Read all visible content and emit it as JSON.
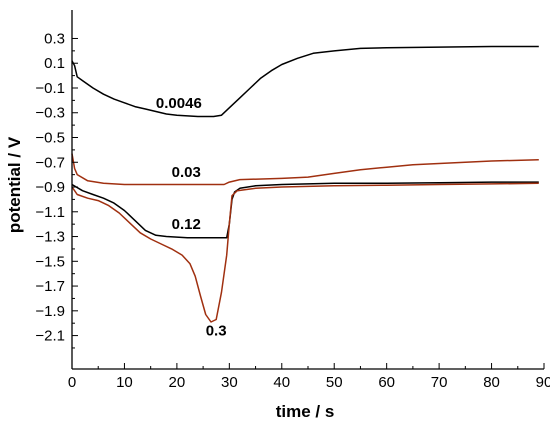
{
  "chart_data": {
    "type": "line",
    "title": "",
    "xlabel": "time / s",
    "ylabel": "potential / V",
    "xlim": [
      0,
      90
    ],
    "ylim": [
      -2.37,
      0.53
    ],
    "xticks": [
      0,
      10,
      20,
      30,
      40,
      50,
      60,
      70,
      80,
      90
    ],
    "yticks": [
      0.3,
      0.1,
      -0.1,
      -0.3,
      -0.5,
      -0.7,
      -0.9,
      -1.1,
      -1.3,
      -1.5,
      -1.7,
      -1.9,
      -2.1
    ],
    "ytick_labels": [
      "0.3",
      "0.1",
      "−0.1",
      "−0.3",
      "−0.5",
      "−0.7",
      "−0.9",
      "−1.1",
      "−1.3",
      "−1.5",
      "−1.7",
      "−1.9",
      "−2.1"
    ],
    "grid": false,
    "legend": "none",
    "series": [
      {
        "name": "0.0046",
        "color": "#000000",
        "label_at": [
          16,
          -0.26
        ],
        "points": [
          [
            0,
            0.12
          ],
          [
            0.5,
            0.08
          ],
          [
            1,
            -0.01
          ],
          [
            2,
            -0.04
          ],
          [
            4,
            -0.1
          ],
          [
            6,
            -0.15
          ],
          [
            8,
            -0.19
          ],
          [
            10,
            -0.22
          ],
          [
            12,
            -0.25
          ],
          [
            14,
            -0.27
          ],
          [
            16,
            -0.29
          ],
          [
            18,
            -0.31
          ],
          [
            20,
            -0.32
          ],
          [
            24,
            -0.33
          ],
          [
            27,
            -0.33
          ],
          [
            28.5,
            -0.32
          ],
          [
            30,
            -0.26
          ],
          [
            32,
            -0.18
          ],
          [
            34,
            -0.1
          ],
          [
            36,
            -0.02
          ],
          [
            38,
            0.04
          ],
          [
            40,
            0.09
          ],
          [
            43,
            0.14
          ],
          [
            46,
            0.18
          ],
          [
            50,
            0.2
          ],
          [
            55,
            0.22
          ],
          [
            60,
            0.225
          ],
          [
            70,
            0.23
          ],
          [
            80,
            0.235
          ],
          [
            89,
            0.235
          ]
        ]
      },
      {
        "name": "0.03",
        "color": "#a03010",
        "label_at": [
          19,
          -0.82
        ],
        "points": [
          [
            0,
            -0.63
          ],
          [
            0.5,
            -0.75
          ],
          [
            1,
            -0.8
          ],
          [
            3,
            -0.85
          ],
          [
            6,
            -0.87
          ],
          [
            10,
            -0.88
          ],
          [
            15,
            -0.88
          ],
          [
            20,
            -0.88
          ],
          [
            25,
            -0.88
          ],
          [
            29,
            -0.88
          ],
          [
            30,
            -0.86
          ],
          [
            32,
            -0.84
          ],
          [
            40,
            -0.83
          ],
          [
            45,
            -0.82
          ],
          [
            50,
            -0.79
          ],
          [
            55,
            -0.76
          ],
          [
            60,
            -0.74
          ],
          [
            65,
            -0.72
          ],
          [
            70,
            -0.71
          ],
          [
            75,
            -0.7
          ],
          [
            80,
            -0.69
          ],
          [
            89,
            -0.68
          ]
        ]
      },
      {
        "name": "0.12",
        "color": "#000000",
        "label_at": [
          19,
          -1.24
        ],
        "points": [
          [
            0,
            -0.88
          ],
          [
            2,
            -0.93
          ],
          [
            4,
            -0.96
          ],
          [
            6,
            -0.99
          ],
          [
            8,
            -1.03
          ],
          [
            10,
            -1.09
          ],
          [
            12,
            -1.17
          ],
          [
            14,
            -1.25
          ],
          [
            16,
            -1.29
          ],
          [
            18,
            -1.3
          ],
          [
            22,
            -1.31
          ],
          [
            26,
            -1.31
          ],
          [
            29.5,
            -1.31
          ],
          [
            30,
            -1.2
          ],
          [
            30.5,
            -1.0
          ],
          [
            31,
            -0.94
          ],
          [
            32,
            -0.91
          ],
          [
            35,
            -0.89
          ],
          [
            40,
            -0.88
          ],
          [
            50,
            -0.87
          ],
          [
            60,
            -0.87
          ],
          [
            70,
            -0.865
          ],
          [
            80,
            -0.86
          ],
          [
            89,
            -0.86
          ]
        ]
      },
      {
        "name": "0.3",
        "color": "#a03010",
        "label_at": [
          25.5,
          -2.1
        ],
        "points": [
          [
            0,
            -0.9
          ],
          [
            0.5,
            -0.93
          ],
          [
            1,
            -0.96
          ],
          [
            3,
            -0.99
          ],
          [
            5,
            -1.01
          ],
          [
            7,
            -1.05
          ],
          [
            9,
            -1.11
          ],
          [
            11,
            -1.19
          ],
          [
            13,
            -1.27
          ],
          [
            15,
            -1.32
          ],
          [
            17,
            -1.36
          ],
          [
            19,
            -1.4
          ],
          [
            21,
            -1.45
          ],
          [
            22.5,
            -1.52
          ],
          [
            23.5,
            -1.62
          ],
          [
            24.5,
            -1.78
          ],
          [
            25.5,
            -1.93
          ],
          [
            26.5,
            -1.99
          ],
          [
            27.5,
            -1.97
          ],
          [
            28.5,
            -1.75
          ],
          [
            29.5,
            -1.45
          ],
          [
            30,
            -1.2
          ],
          [
            30.5,
            -0.97
          ],
          [
            31.5,
            -0.93
          ],
          [
            35,
            -0.91
          ],
          [
            40,
            -0.9
          ],
          [
            50,
            -0.89
          ],
          [
            60,
            -0.885
          ],
          [
            70,
            -0.88
          ],
          [
            80,
            -0.875
          ],
          [
            89,
            -0.87
          ]
        ]
      }
    ]
  }
}
